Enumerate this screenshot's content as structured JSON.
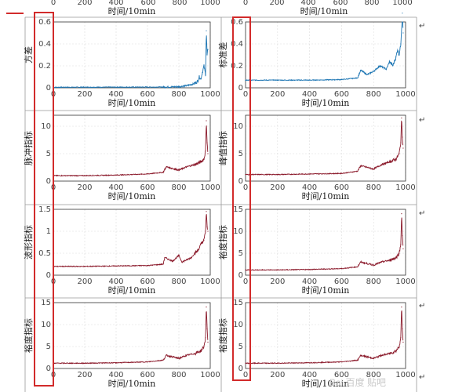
{
  "top_strip": {
    "x_ticks": [
      "0",
      "200",
      "400",
      "600",
      "800",
      "1000"
    ],
    "xlabel": "时间/10min"
  },
  "para_mark": "↵",
  "watermark": "Bai 百度 贴吧",
  "chart_data": [
    {
      "type": "line",
      "xlabel": "时间/10min",
      "ylabel": "方差",
      "xlim": [
        0,
        1000
      ],
      "ylim": [
        0,
        0.6
      ],
      "x_ticks": [
        0,
        200,
        400,
        600,
        800,
        1000
      ],
      "y_ticks": [
        0,
        0.2,
        0.4,
        0.6
      ],
      "color": "#1f77b4",
      "grid": true,
      "x": [
        0,
        700,
        800,
        850,
        880,
        900,
        920,
        930,
        940,
        950,
        960,
        970,
        975,
        980,
        985
      ],
      "y": [
        0.005,
        0.007,
        0.01,
        0.02,
        0.03,
        0.04,
        0.06,
        0.1,
        0.08,
        0.14,
        0.2,
        0.12,
        0.52,
        0.3,
        0.35
      ]
    },
    {
      "type": "line",
      "xlabel": "时间/10min",
      "ylabel": "标准差",
      "xlim": [
        0,
        1000
      ],
      "ylim": [
        0,
        0.6
      ],
      "x_ticks": [
        0,
        200,
        400,
        600,
        800,
        1000
      ],
      "y_ticks": [
        0,
        0.2,
        0.4,
        0.6
      ],
      "color": "#1f77b4",
      "grid": true,
      "x": [
        0,
        200,
        400,
        600,
        700,
        720,
        760,
        800,
        840,
        880,
        900,
        920,
        940,
        950,
        960,
        970,
        980,
        985
      ],
      "y": [
        0.07,
        0.07,
        0.07,
        0.075,
        0.09,
        0.16,
        0.12,
        0.15,
        0.2,
        0.17,
        0.24,
        0.2,
        0.28,
        0.35,
        0.3,
        0.4,
        0.68,
        0.5
      ]
    },
    {
      "type": "line",
      "xlabel": "时间/10min",
      "ylabel": "脉冲指标",
      "xlim": [
        0,
        1000
      ],
      "ylim": [
        0,
        12
      ],
      "x_ticks": [
        0,
        200,
        400,
        600,
        800,
        1000
      ],
      "y_ticks": [
        0,
        5,
        10
      ],
      "color": "#8b1a2b",
      "grid": true,
      "x": [
        0,
        200,
        400,
        600,
        700,
        720,
        800,
        850,
        900,
        940,
        960,
        970,
        975,
        980,
        985
      ],
      "y": [
        1.0,
        1.0,
        1.1,
        1.3,
        1.6,
        2.6,
        2.0,
        2.6,
        3.0,
        3.5,
        4.0,
        5.5,
        11.0,
        7.0,
        5.0
      ]
    },
    {
      "type": "line",
      "xlabel": "时间/10min",
      "ylabel": "峰值指标",
      "xlim": [
        0,
        1000
      ],
      "ylim": [
        0,
        12
      ],
      "x_ticks": [
        0,
        200,
        400,
        600,
        800,
        1000
      ],
      "y_ticks": [
        0,
        5,
        10
      ],
      "color": "#8b1a2b",
      "grid": true,
      "x": [
        0,
        200,
        400,
        600,
        700,
        720,
        800,
        850,
        900,
        940,
        960,
        970,
        975,
        980,
        985
      ],
      "y": [
        1.2,
        1.2,
        1.3,
        1.4,
        1.8,
        2.8,
        2.2,
        3.0,
        3.5,
        4.0,
        5.0,
        7.0,
        11.5,
        8.0,
        6.0
      ]
    },
    {
      "type": "line",
      "xlabel": "时间/10min",
      "ylabel": "波形指标",
      "xlim": [
        0,
        1000
      ],
      "ylim": [
        0,
        1.5
      ],
      "x_ticks": [
        0,
        200,
        400,
        600,
        800,
        1000
      ],
      "y_ticks": [
        0,
        0.5,
        1,
        1.5
      ],
      "color": "#8b1a2b",
      "grid": true,
      "x": [
        0,
        200,
        400,
        600,
        700,
        710,
        760,
        800,
        820,
        850,
        880,
        900,
        920,
        940,
        960,
        970,
        975,
        980,
        985
      ],
      "y": [
        0.2,
        0.2,
        0.21,
        0.22,
        0.25,
        0.4,
        0.32,
        0.45,
        0.3,
        0.35,
        0.4,
        0.5,
        0.55,
        0.7,
        0.8,
        1.0,
        1.45,
        1.1,
        1.0
      ]
    },
    {
      "type": "line",
      "xlabel": "时间/10min",
      "ylabel": "裕度指标",
      "xlim": [
        0,
        1000
      ],
      "ylim": [
        0,
        15
      ],
      "x_ticks": [
        0,
        200,
        400,
        600,
        800,
        1000
      ],
      "y_ticks": [
        0,
        5,
        10,
        15
      ],
      "color": "#8b1a2b",
      "grid": true,
      "x": [
        0,
        200,
        400,
        600,
        700,
        720,
        800,
        850,
        900,
        940,
        960,
        970,
        975,
        980,
        985
      ],
      "y": [
        1.2,
        1.2,
        1.3,
        1.5,
        1.9,
        3.0,
        2.3,
        3.0,
        3.4,
        4.0,
        5.0,
        7.0,
        14.0,
        9.0,
        6.0
      ]
    },
    {
      "type": "line",
      "xlabel": "时间/10min",
      "ylabel": "裕度指标",
      "xlim": [
        0,
        1000
      ],
      "ylim": [
        0,
        15
      ],
      "x_ticks": [
        0,
        200,
        400,
        600,
        800,
        1000
      ],
      "y_ticks": [
        0,
        5,
        10,
        15
      ],
      "color": "#8b1a2b",
      "grid": true,
      "x": [
        0,
        200,
        400,
        600,
        700,
        720,
        800,
        850,
        900,
        940,
        960,
        970,
        975,
        980,
        985
      ],
      "y": [
        1.2,
        1.2,
        1.3,
        1.5,
        1.9,
        3.0,
        2.3,
        3.0,
        3.4,
        4.0,
        5.0,
        7.0,
        14.0,
        9.0,
        6.0
      ]
    },
    {
      "type": "line",
      "xlabel": "时间/10min",
      "ylabel": "裕度指标",
      "xlim": [
        0,
        1000
      ],
      "ylim": [
        0,
        15
      ],
      "x_ticks": [
        0,
        200,
        400,
        600,
        800,
        1000
      ],
      "y_ticks": [
        0,
        5,
        10,
        15
      ],
      "color": "#8b1a2b",
      "grid": true,
      "x": [
        0,
        200,
        400,
        600,
        700,
        720,
        800,
        850,
        900,
        940,
        960,
        970,
        975,
        980,
        985
      ],
      "y": [
        1.2,
        1.2,
        1.3,
        1.5,
        1.9,
        3.0,
        2.3,
        3.0,
        3.4,
        4.0,
        5.0,
        7.0,
        14.0,
        9.0,
        6.0
      ]
    }
  ]
}
